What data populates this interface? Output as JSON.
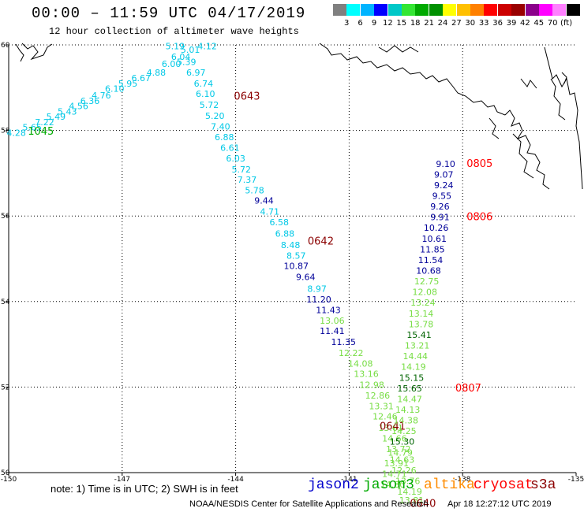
{
  "header": {
    "title": "00:00 – 11:59 UTC 04/17/2019",
    "subtitle": "12 hour collection of altimeter wave heights"
  },
  "scale": {
    "colors": [
      "#808080",
      "#00ffff",
      "#00b4ff",
      "#0000ff",
      "#00c8c8",
      "#33e633",
      "#00aa00",
      "#009000",
      "#ffff00",
      "#ffc000",
      "#ff8000",
      "#ff0000",
      "#cc0000",
      "#990000",
      "#8b008b",
      "#ff00ff",
      "#ff80ff",
      "#000000"
    ],
    "labels": [
      "3",
      "6",
      "9",
      "12",
      "15",
      "18",
      "21",
      "24",
      "27",
      "30",
      "33",
      "36",
      "39",
      "42",
      "45",
      "70",
      "(ft)"
    ]
  },
  "axes": {
    "x_ticks": [
      "-150",
      "-147",
      "-144",
      "-141",
      "-138",
      "-135"
    ],
    "y_ticks": [
      "60",
      "58",
      "56",
      "54",
      "52",
      "50"
    ]
  },
  "satellite_colors": {
    "jason2": "#000099",
    "jason3": "#008000",
    "altika": "#ff8c00",
    "cryosat": "#cc0000",
    "s3a": "#8b0000"
  },
  "tracks": [
    {
      "id": "track-1045",
      "label_color": "#00aa00",
      "time_label": "1045",
      "time_pos": [
        -149.15,
        57.9
      ],
      "points": [
        {
          "v": "4.28",
          "lon": -149.8,
          "lat": 57.87,
          "c": "#00c8e6"
        },
        {
          "v": "5.65",
          "lon": -149.38,
          "lat": 58.0,
          "c": "#00c8e6"
        },
        {
          "v": "7.22",
          "lon": -149.05,
          "lat": 58.12,
          "c": "#00c8e6"
        },
        {
          "v": "5.49",
          "lon": -148.75,
          "lat": 58.25,
          "c": "#00c8e6"
        },
        {
          "v": "5.43",
          "lon": -148.45,
          "lat": 58.37,
          "c": "#00c8e6"
        },
        {
          "v": "4.56",
          "lon": -148.15,
          "lat": 58.5,
          "c": "#00c8e6"
        },
        {
          "v": "6.36",
          "lon": -147.85,
          "lat": 58.62,
          "c": "#00c8e6"
        },
        {
          "v": "4.76",
          "lon": -147.55,
          "lat": 58.75,
          "c": "#00c8e6"
        },
        {
          "v": "6.10",
          "lon": -147.2,
          "lat": 58.9,
          "c": "#00c8e6"
        },
        {
          "v": "5.95",
          "lon": -146.85,
          "lat": 59.02,
          "c": "#00c8e6"
        },
        {
          "v": "6.67",
          "lon": -146.5,
          "lat": 59.15,
          "c": "#00c8e6"
        },
        {
          "v": "4.88",
          "lon": -146.1,
          "lat": 59.28,
          "c": "#00c8e6"
        },
        {
          "v": "6.00",
          "lon": -145.7,
          "lat": 59.48,
          "c": "#00c8e6"
        },
        {
          "v": "6.04",
          "lon": -145.45,
          "lat": 59.65,
          "c": "#00c8e6"
        },
        {
          "v": "5.01",
          "lon": -145.2,
          "lat": 59.82,
          "c": "#00c8e6"
        },
        {
          "v": "5.19",
          "lon": -145.6,
          "lat": 59.9,
          "c": "#00c8e6"
        },
        {
          "v": "4.12",
          "lon": -144.75,
          "lat": 59.9,
          "c": "#00c8e6"
        }
      ]
    },
    {
      "id": "track-0643",
      "label_color": "#8b0000",
      "time_label": "0643",
      "time_pos": [
        -143.7,
        58.72
      ],
      "points": [
        {
          "v": "5.39",
          "lon": -145.3,
          "lat": 59.53,
          "c": "#00c8e6"
        },
        {
          "v": "6.97",
          "lon": -145.05,
          "lat": 59.28,
          "c": "#00c8e6"
        },
        {
          "v": "6.74",
          "lon": -144.85,
          "lat": 59.02,
          "c": "#00c8e6"
        },
        {
          "v": "6.10",
          "lon": -144.8,
          "lat": 58.78,
          "c": "#00c8e6"
        },
        {
          "v": "5.72",
          "lon": -144.7,
          "lat": 58.53,
          "c": "#00c8e6"
        },
        {
          "v": "5.20",
          "lon": -144.55,
          "lat": 58.27,
          "c": "#00c8e6"
        },
        {
          "v": "7.40",
          "lon": -144.4,
          "lat": 58.02,
          "c": "#00c8e6"
        },
        {
          "v": "6.88",
          "lon": -144.3,
          "lat": 57.77,
          "c": "#00c8e6"
        },
        {
          "v": "6.61",
          "lon": -144.15,
          "lat": 57.52,
          "c": "#00c8e6"
        },
        {
          "v": "6.03",
          "lon": -144.0,
          "lat": 57.27,
          "c": "#00c8e6"
        },
        {
          "v": "5.72",
          "lon": -143.85,
          "lat": 57.02,
          "c": "#00c8e6"
        },
        {
          "v": "7.37",
          "lon": -143.7,
          "lat": 56.78,
          "c": "#00c8e6"
        },
        {
          "v": "5.78",
          "lon": -143.5,
          "lat": 56.53,
          "c": "#00c8e6"
        },
        {
          "v": "9.44",
          "lon": -143.25,
          "lat": 56.29,
          "c": "#000099"
        },
        {
          "v": "4.71",
          "lon": -143.1,
          "lat": 56.03,
          "c": "#00c8e6"
        },
        {
          "v": "6.58",
          "lon": -142.85,
          "lat": 55.78,
          "c": "#00c8e6"
        },
        {
          "v": "6.88",
          "lon": -142.7,
          "lat": 55.52,
          "c": "#00c8e6"
        },
        {
          "v": "8.48",
          "lon": -142.55,
          "lat": 55.25,
          "c": "#00c8e6"
        }
      ]
    },
    {
      "id": "track-0642",
      "label_color": "#8b0000",
      "time_label": "0642",
      "time_pos": [
        -141.75,
        55.33
      ],
      "points": [
        {
          "v": "8.57",
          "lon": -142.4,
          "lat": 55.0,
          "c": "#00c8e6"
        },
        {
          "v": "10.87",
          "lon": -142.4,
          "lat": 54.76,
          "c": "#000099"
        },
        {
          "v": "9.64",
          "lon": -142.15,
          "lat": 54.5,
          "c": "#000099"
        },
        {
          "v": "8.97",
          "lon": -141.85,
          "lat": 54.23,
          "c": "#00c8e6"
        },
        {
          "v": "11.20",
          "lon": -141.8,
          "lat": 53.98,
          "c": "#000099"
        },
        {
          "v": "11.43",
          "lon": -141.55,
          "lat": 53.73,
          "c": "#000099"
        },
        {
          "v": "13.06",
          "lon": -141.45,
          "lat": 53.48,
          "c": "#77dd44"
        },
        {
          "v": "11.41",
          "lon": -141.45,
          "lat": 53.24,
          "c": "#000099"
        },
        {
          "v": "11.35",
          "lon": -141.15,
          "lat": 52.98,
          "c": "#000099"
        },
        {
          "v": "12.22",
          "lon": -140.95,
          "lat": 52.73,
          "c": "#77dd44"
        },
        {
          "v": "14.08",
          "lon": -140.7,
          "lat": 52.48,
          "c": "#77dd44"
        },
        {
          "v": "13.16",
          "lon": -140.55,
          "lat": 52.24,
          "c": "#77dd44"
        },
        {
          "v": "12.98",
          "lon": -140.4,
          "lat": 51.98,
          "c": "#77dd44"
        },
        {
          "v": "12.86",
          "lon": -140.25,
          "lat": 51.73,
          "c": "#77dd44"
        }
      ]
    },
    {
      "id": "track-0641",
      "label_color": "#8b0000",
      "time_label": "0641",
      "time_pos": [
        -139.85,
        51.0
      ],
      "points": [
        {
          "v": "13.31",
          "lon": -140.15,
          "lat": 51.48,
          "c": "#77dd44"
        },
        {
          "v": "12.46",
          "lon": -140.05,
          "lat": 51.24,
          "c": "#77dd44"
        },
        {
          "v": "13.61",
          "lon": -139.9,
          "lat": 50.98,
          "c": "#77dd44"
        },
        {
          "v": "14.66",
          "lon": -139.8,
          "lat": 50.73,
          "c": "#77dd44"
        },
        {
          "v": "13.72",
          "lon": -139.7,
          "lat": 50.48,
          "c": "#77dd44"
        },
        {
          "v": "14.63",
          "lon": -139.6,
          "lat": 50.23,
          "c": "#77dd44"
        },
        {
          "v": "12.26",
          "lon": -139.55,
          "lat": 49.98,
          "c": "#77dd44"
        },
        {
          "v": "13.76",
          "lon": -139.45,
          "lat": 49.73,
          "c": "#77dd44"
        },
        {
          "v": "14.19",
          "lon": -139.4,
          "lat": 49.48,
          "c": "#77dd44"
        },
        {
          "v": "13.81",
          "lon": -139.35,
          "lat": 49.28,
          "c": "#77dd44"
        }
      ]
    },
    {
      "id": "track-0805",
      "label_color": "#ff0000",
      "time_label": "0805",
      "time_pos": [
        -137.55,
        57.15
      ],
      "points": [
        {
          "v": "9.10",
          "lon": -138.45,
          "lat": 57.15,
          "c": "#000099"
        },
        {
          "v": "9.07",
          "lon": -138.5,
          "lat": 56.9,
          "c": "#000099"
        },
        {
          "v": "9.24",
          "lon": -138.5,
          "lat": 56.65,
          "c": "#000099"
        },
        {
          "v": "9.55",
          "lon": -138.55,
          "lat": 56.4,
          "c": "#000099"
        },
        {
          "v": "9.26",
          "lon": -138.6,
          "lat": 56.15,
          "c": "#000099"
        },
        {
          "v": "9.91",
          "lon": -138.6,
          "lat": 55.9,
          "c": "#000099"
        }
      ]
    },
    {
      "id": "track-0806",
      "label_color": "#ff0000",
      "time_label": "0806",
      "time_pos": [
        -137.55,
        55.9
      ],
      "points": [
        {
          "v": "10.26",
          "lon": -138.7,
          "lat": 55.65,
          "c": "#000099"
        },
        {
          "v": "10.61",
          "lon": -138.75,
          "lat": 55.4,
          "c": "#000099"
        },
        {
          "v": "11.85",
          "lon": -138.8,
          "lat": 55.15,
          "c": "#000099"
        },
        {
          "v": "11.54",
          "lon": -138.85,
          "lat": 54.9,
          "c": "#000099"
        },
        {
          "v": "10.68",
          "lon": -138.9,
          "lat": 54.65,
          "c": "#000099"
        },
        {
          "v": "12.75",
          "lon": -138.95,
          "lat": 54.4,
          "c": "#77dd44"
        },
        {
          "v": "12.08",
          "lon": -139.0,
          "lat": 54.15,
          "c": "#77dd44"
        },
        {
          "v": "13.24",
          "lon": -139.05,
          "lat": 53.9,
          "c": "#77dd44"
        },
        {
          "v": "13.14",
          "lon": -139.1,
          "lat": 53.65,
          "c": "#77dd44"
        },
        {
          "v": "13.78",
          "lon": -139.1,
          "lat": 53.4,
          "c": "#77dd44"
        },
        {
          "v": "15.41",
          "lon": -139.15,
          "lat": 53.15,
          "c": "#006400"
        },
        {
          "v": "13.21",
          "lon": -139.2,
          "lat": 52.9,
          "c": "#77dd44"
        },
        {
          "v": "14.44",
          "lon": -139.25,
          "lat": 52.65,
          "c": "#77dd44"
        },
        {
          "v": "14.19",
          "lon": -139.3,
          "lat": 52.4,
          "c": "#77dd44"
        },
        {
          "v": "15.15",
          "lon": -139.35,
          "lat": 52.15,
          "c": "#006400"
        },
        {
          "v": "15.65",
          "lon": -139.4,
          "lat": 51.9,
          "c": "#006400"
        }
      ]
    },
    {
      "id": "track-0807",
      "label_color": "#ff0000",
      "time_label": "0807",
      "time_pos": [
        -137.85,
        51.9
      ],
      "points": [
        {
          "v": "14.47",
          "lon": -139.4,
          "lat": 51.65,
          "c": "#77dd44"
        },
        {
          "v": "14.13",
          "lon": -139.45,
          "lat": 51.4,
          "c": "#77dd44"
        },
        {
          "v": "14.38",
          "lon": -139.5,
          "lat": 51.15,
          "c": "#77dd44"
        },
        {
          "v": "14.25",
          "lon": -139.55,
          "lat": 50.9,
          "c": "#77dd44"
        },
        {
          "v": "15.30",
          "lon": -139.6,
          "lat": 50.65,
          "c": "#006400"
        },
        {
          "v": "14.79",
          "lon": -139.65,
          "lat": 50.4,
          "c": "#77dd44"
        },
        {
          "v": "13.91",
          "lon": -139.75,
          "lat": 50.15,
          "c": "#77dd44"
        },
        {
          "v": "14.71",
          "lon": -139.8,
          "lat": 49.9,
          "c": "#77dd44"
        },
        {
          "v": "14.80",
          "lon": -139.85,
          "lat": 49.65,
          "c": "#77dd44"
        }
      ]
    },
    {
      "id": "track-0640",
      "label_color": "#8b0000",
      "time_label": "0640",
      "time_pos": [
        -139.05,
        49.2
      ],
      "points": []
    }
  ],
  "footer": {
    "note": "note: 1) Time is in UTC; 2) SWH is in feet",
    "legend": [
      {
        "name": "jason2",
        "color": "#0000cc"
      },
      {
        "name": "jason3",
        "color": "#00aa00"
      },
      {
        "name": "altika",
        "color": "#ff8c00"
      },
      {
        "name": "cryosat",
        "color": "#ff0000"
      },
      {
        "name": "s3a",
        "color": "#8b0000"
      }
    ],
    "credit": "NOAA/NESDIS Center for Satellite Applications and Research",
    "timestamp": "Apr 18 12:27:12 UTC 2019"
  }
}
